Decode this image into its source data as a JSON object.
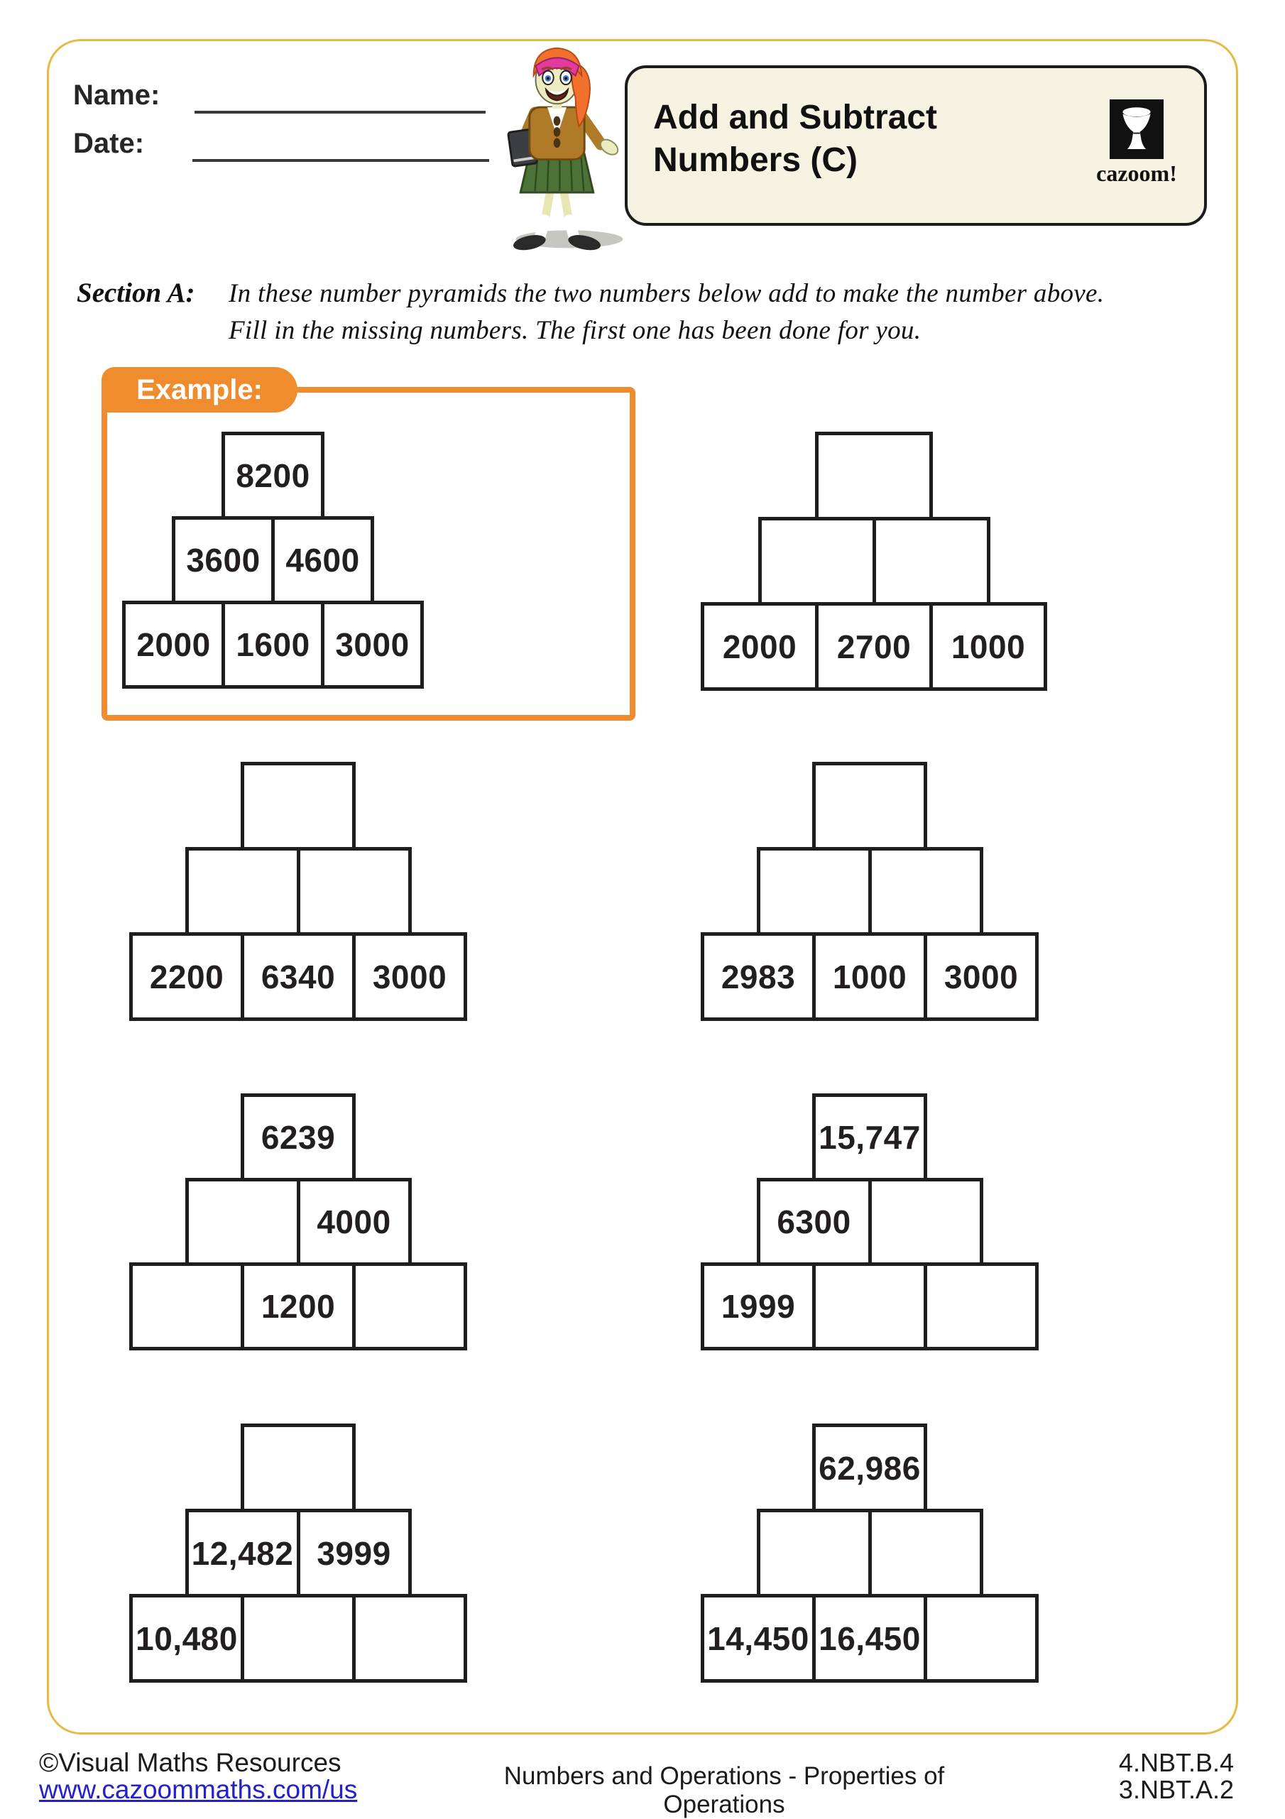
{
  "header": {
    "name_label": "Name:",
    "date_label": "Date:",
    "title_line1": "Add and Subtract",
    "title_line2": "Numbers (C)",
    "logo_text": "cazoom!"
  },
  "section": {
    "label": "Section A:",
    "instruction_line1": "In these number pyramids the two numbers below add to make the number above.",
    "instruction_line2": "Fill in the missing numbers. The first one has been done for you.",
    "example_label": "Example:"
  },
  "pyramids": [
    {
      "name": "example-pyramid",
      "rows": [
        [
          "8200"
        ],
        [
          "3600",
          "4600"
        ],
        [
          "2000",
          "1600",
          "3000"
        ]
      ]
    },
    {
      "name": "pyramid-1",
      "rows": [
        [
          ""
        ],
        [
          "",
          ""
        ],
        [
          "2000",
          "2700",
          "1000"
        ]
      ]
    },
    {
      "name": "pyramid-2",
      "rows": [
        [
          ""
        ],
        [
          "",
          ""
        ],
        [
          "2200",
          "6340",
          "3000"
        ]
      ]
    },
    {
      "name": "pyramid-3",
      "rows": [
        [
          ""
        ],
        [
          "",
          ""
        ],
        [
          "2983",
          "1000",
          "3000"
        ]
      ]
    },
    {
      "name": "pyramid-4",
      "rows": [
        [
          "6239"
        ],
        [
          "",
          "4000"
        ],
        [
          "",
          "1200",
          ""
        ]
      ]
    },
    {
      "name": "pyramid-5",
      "rows": [
        [
          "15,747"
        ],
        [
          "6300",
          ""
        ],
        [
          "1999",
          "",
          ""
        ]
      ]
    },
    {
      "name": "pyramid-6",
      "rows": [
        [
          ""
        ],
        [
          "12,482",
          "3999"
        ],
        [
          "10,480",
          "",
          ""
        ]
      ]
    },
    {
      "name": "pyramid-7",
      "rows": [
        [
          "62,986"
        ],
        [
          "",
          ""
        ],
        [
          "14,450",
          "16,450",
          ""
        ]
      ]
    }
  ],
  "footer": {
    "copyright": "©Visual Maths Resources",
    "url": "www.cazoommaths.com/us",
    "center_text": "Numbers and Operations -  Properties of Operations",
    "standard_1": "4.NBT.B.4",
    "standard_2": "3.NBT.A.2"
  },
  "colors": {
    "accent_orange": "#EF8C2E",
    "page_border_gold": "#E7BB43",
    "title_box_cream": "#F7F3E3",
    "link_blue": "#2222CC"
  }
}
